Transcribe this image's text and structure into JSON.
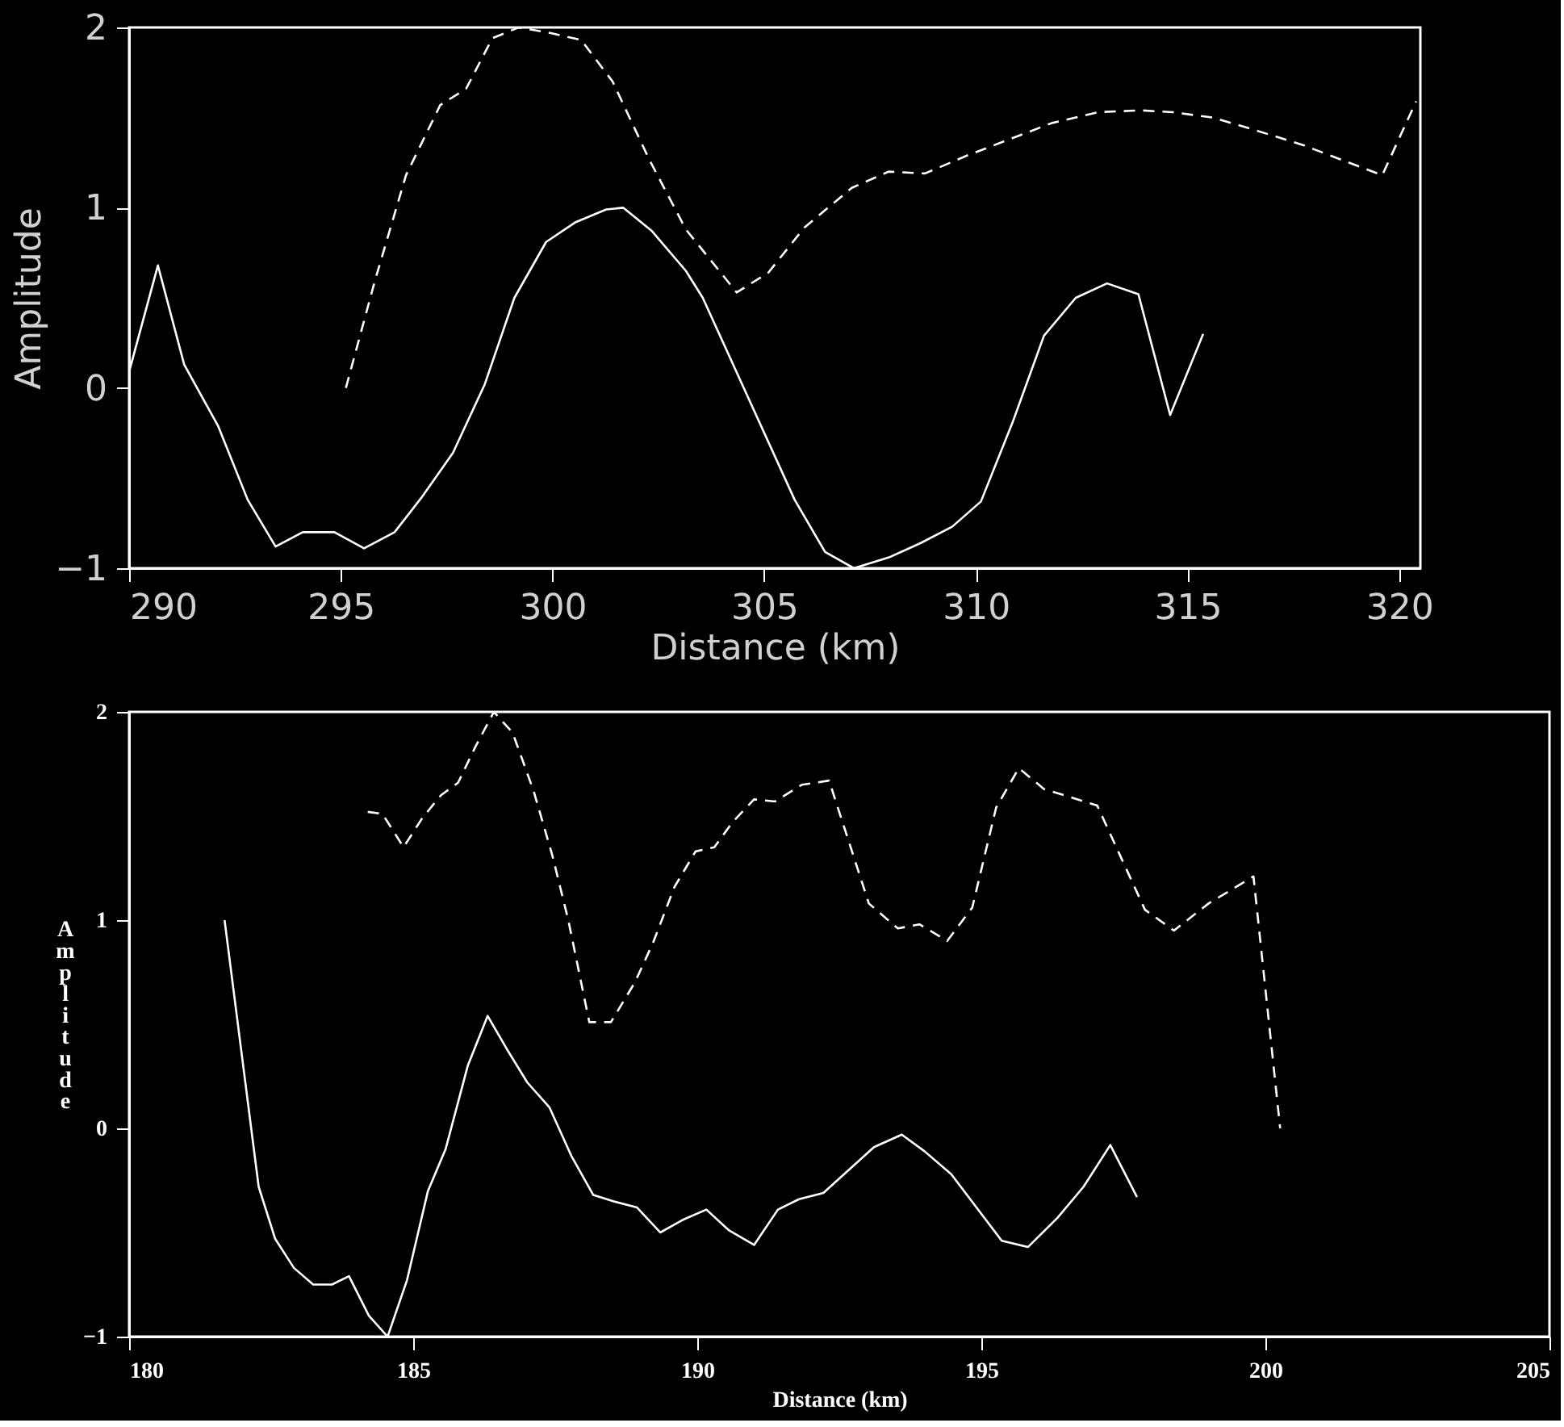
{
  "chart_data": [
    {
      "type": "line",
      "xlabel": "Distance (km)",
      "ylabel": "Amplitude",
      "xlim": [
        290,
        320.5
      ],
      "xticks": [
        290,
        295,
        300,
        305,
        310,
        315,
        320
      ],
      "ylim": [
        -1,
        2
      ],
      "yticks": [
        -1,
        0,
        1,
        2
      ],
      "grid": false,
      "series": [
        {
          "color": "#ffffff",
          "line_style": "solid",
          "x": [
            290.0,
            290.68,
            291.3,
            292.1,
            292.8,
            293.46,
            294.1,
            294.85,
            295.55,
            296.27,
            296.9,
            297.65,
            298.4,
            299.1,
            299.85,
            300.55,
            301.27,
            301.67,
            302.35,
            303.15,
            303.55,
            305.72,
            306.44,
            307.12,
            307.95,
            308.7,
            309.44,
            310.12,
            310.87,
            311.61,
            312.36,
            313.1,
            313.84,
            314.59,
            315.37
          ],
          "values": [
            0.09,
            0.68,
            0.13,
            -0.21,
            -0.62,
            -0.88,
            -0.8,
            -0.8,
            -0.89,
            -0.8,
            -0.61,
            -0.36,
            0.02,
            0.5,
            0.81,
            0.92,
            0.99,
            1.0,
            0.87,
            0.65,
            0.5,
            -0.62,
            -0.91,
            -1.0,
            -0.94,
            -0.86,
            -0.77,
            -0.63,
            -0.19,
            0.29,
            0.5,
            0.58,
            0.52,
            -0.15,
            0.3
          ]
        },
        {
          "color": "#ffffff",
          "line_style": "dashed",
          "x": [
            295.12,
            295.8,
            296.54,
            297.35,
            297.96,
            298.58,
            299.2,
            299.94,
            300.68,
            301.42,
            302.28,
            303.15,
            304.35,
            305.1,
            305.95,
            307.07,
            307.94,
            308.8,
            309.8,
            310.8,
            311.8,
            312.9,
            313.9,
            314.65,
            315.6,
            316.6,
            317.7,
            318.7,
            319.6,
            320.4
          ],
          "values": [
            0.0,
            0.59,
            1.18,
            1.57,
            1.66,
            1.94,
            2.0,
            1.97,
            1.93,
            1.7,
            1.27,
            0.88,
            0.53,
            0.64,
            0.89,
            1.11,
            1.2,
            1.19,
            1.29,
            1.38,
            1.47,
            1.53,
            1.54,
            1.53,
            1.5,
            1.43,
            1.35,
            1.26,
            1.18,
            1.59
          ]
        }
      ]
    },
    {
      "type": "line",
      "xlabel": "Distance (km)",
      "ylabel": "Amplitude",
      "xlim": [
        180,
        205
      ],
      "xticks": [
        180,
        185,
        190,
        195,
        200,
        205
      ],
      "ylim": [
        -1,
        2
      ],
      "yticks": [
        -1,
        0,
        1,
        2
      ],
      "grid": false,
      "series": [
        {
          "color": "#ffffff",
          "line_style": "solid",
          "x": [
            181.68,
            182.28,
            182.57,
            182.9,
            183.24,
            183.57,
            183.87,
            184.22,
            184.55,
            184.89,
            185.26,
            185.57,
            185.96,
            186.31,
            186.65,
            187.01,
            187.4,
            187.78,
            188.17,
            188.52,
            188.94,
            189.35,
            189.74,
            190.16,
            190.56,
            191.0,
            191.42,
            191.79,
            192.22,
            193.11,
            193.6,
            194.0,
            194.47,
            195.36,
            195.82,
            196.34,
            196.8,
            197.27,
            197.74
          ],
          "values": [
            1.0,
            -0.28,
            -0.53,
            -0.67,
            -0.75,
            -0.75,
            -0.71,
            -0.9,
            -1.0,
            -0.73,
            -0.3,
            -0.1,
            0.3,
            0.54,
            0.38,
            0.22,
            0.1,
            -0.13,
            -0.32,
            -0.35,
            -0.38,
            -0.5,
            -0.44,
            -0.39,
            -0.49,
            -0.56,
            -0.39,
            -0.34,
            -0.31,
            -0.09,
            -0.03,
            -0.11,
            -0.22,
            -0.54,
            -0.57,
            -0.43,
            -0.28,
            -0.08,
            -0.33
          ]
        },
        {
          "color": "#ffffff",
          "line_style": "dashed",
          "x": [
            184.2,
            184.46,
            184.83,
            185.16,
            185.49,
            185.79,
            186.09,
            186.42,
            186.75,
            187.12,
            187.45,
            187.73,
            188.1,
            188.48,
            188.9,
            189.22,
            189.6,
            189.97,
            190.3,
            190.62,
            191.0,
            191.37,
            191.84,
            192.32,
            193.02,
            193.53,
            193.91,
            194.4,
            194.84,
            195.26,
            195.66,
            196.1,
            196.57,
            197.04,
            197.46,
            197.88,
            198.39,
            199.0,
            199.79,
            200.26
          ],
          "values": [
            1.52,
            1.51,
            1.35,
            1.49,
            1.6,
            1.66,
            1.83,
            2.0,
            1.9,
            1.62,
            1.31,
            1.0,
            0.51,
            0.51,
            0.7,
            0.89,
            1.16,
            1.33,
            1.35,
            1.47,
            1.58,
            1.57,
            1.65,
            1.67,
            1.08,
            0.96,
            0.98,
            0.9,
            1.06,
            1.54,
            1.73,
            1.63,
            1.59,
            1.55,
            1.3,
            1.05,
            0.95,
            1.08,
            1.21,
            0.0
          ]
        }
      ]
    }
  ]
}
